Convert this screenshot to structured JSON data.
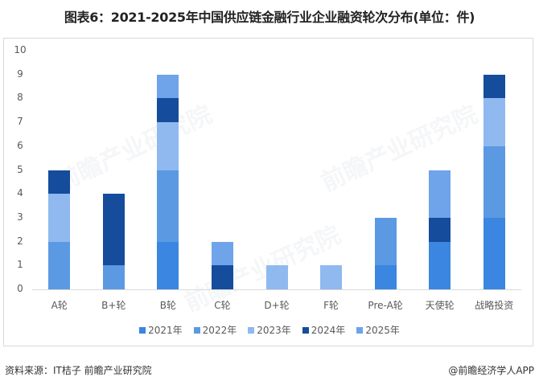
{
  "title": "图表6：2021-2025年中国供应链金融行业企业融资轮次分布(单位：件)",
  "footer": {
    "source": "资料来源：IT桔子 前瞻产业研究院",
    "credit": "@前瞻经济学人APP"
  },
  "watermark": "前瞻产业研究院",
  "legend": [
    {
      "label": "2021年",
      "color": "#3a86e0"
    },
    {
      "label": "2022年",
      "color": "#5b99e3"
    },
    {
      "label": "2023年",
      "color": "#8fb9ef"
    },
    {
      "label": "2024年",
      "color": "#154c9c"
    },
    {
      "label": "2025年",
      "color": "#6fa3ea"
    }
  ],
  "yticks": [
    "0",
    "1",
    "2",
    "3",
    "4",
    "5",
    "6",
    "7",
    "8",
    "9",
    "10"
  ],
  "chart_data": {
    "type": "bar",
    "stacked": true,
    "title": "图表6：2021-2025年中国供应链金融行业企业融资轮次分布(单位：件)",
    "xlabel": "",
    "ylabel": "",
    "ylim": [
      0,
      10
    ],
    "grid": false,
    "legend_position": "bottom",
    "categories": [
      "A轮",
      "B+轮",
      "B轮",
      "C轮",
      "D+轮",
      "F轮",
      "Pre-A轮",
      "天使轮",
      "战略投资"
    ],
    "series": [
      {
        "name": "2021年",
        "values": [
          0,
          0,
          2,
          0,
          0,
          0,
          1,
          2,
          3
        ]
      },
      {
        "name": "2022年",
        "values": [
          2,
          1,
          3,
          0,
          0,
          0,
          2,
          0,
          3
        ]
      },
      {
        "name": "2023年",
        "values": [
          2,
          0,
          2,
          0,
          1,
          1,
          0,
          0,
          2
        ]
      },
      {
        "name": "2024年",
        "values": [
          1,
          3,
          1,
          1,
          0,
          0,
          0,
          1,
          1
        ]
      },
      {
        "name": "2025年",
        "values": [
          0,
          0,
          1,
          1,
          0,
          0,
          0,
          2,
          0
        ]
      }
    ],
    "totals": [
      5,
      4,
      9,
      2,
      1,
      1,
      3,
      5,
      9
    ]
  }
}
